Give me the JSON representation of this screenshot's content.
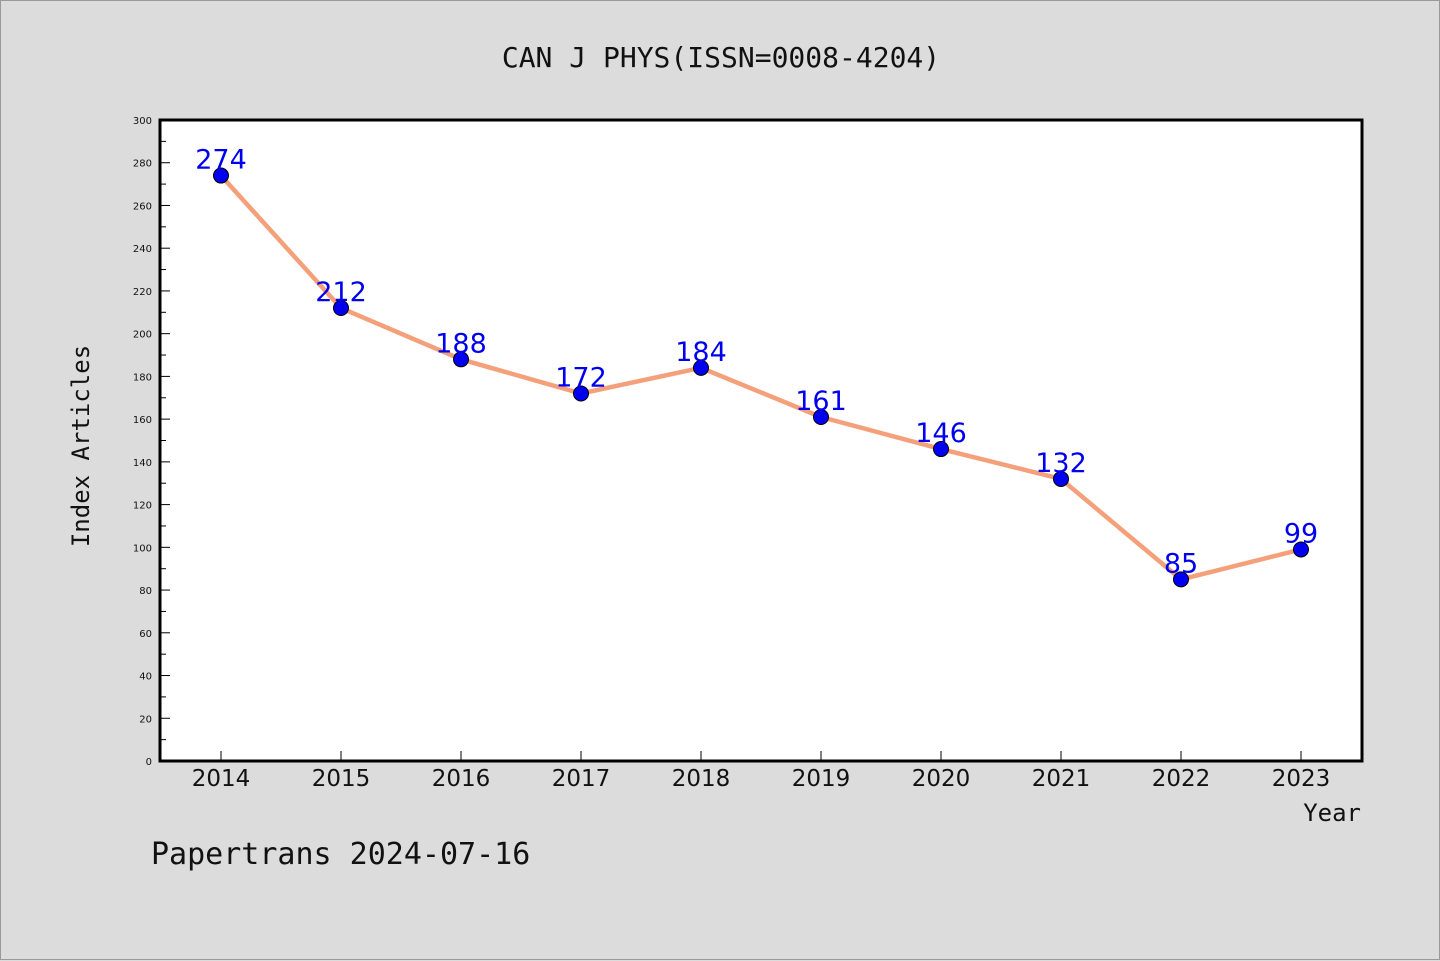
{
  "chart_data": {
    "type": "line",
    "title": "CAN J PHYS(ISSN=0008-4204)",
    "xlabel": "Year",
    "ylabel": "Index Articles",
    "categories": [
      "2014",
      "2015",
      "2016",
      "2017",
      "2018",
      "2019",
      "2020",
      "2021",
      "2022",
      "2023"
    ],
    "series": [
      {
        "values": [
          274,
          212,
          188,
          172,
          184,
          161,
          146,
          132,
          85,
          99
        ]
      }
    ],
    "ylim": [
      0,
      300
    ],
    "yticks": [
      0,
      20,
      40,
      60,
      80,
      100,
      120,
      140,
      160,
      180,
      200,
      220,
      240,
      260,
      280,
      300
    ],
    "grid": false,
    "data_labels": true
  },
  "footer": "Papertrans 2024-07-16",
  "colors": {
    "background": "#dcdcdc",
    "plot_area": "#ffffff",
    "line": "#f4a07a",
    "marker": "#0000ee",
    "data_label": "#0000ee"
  }
}
